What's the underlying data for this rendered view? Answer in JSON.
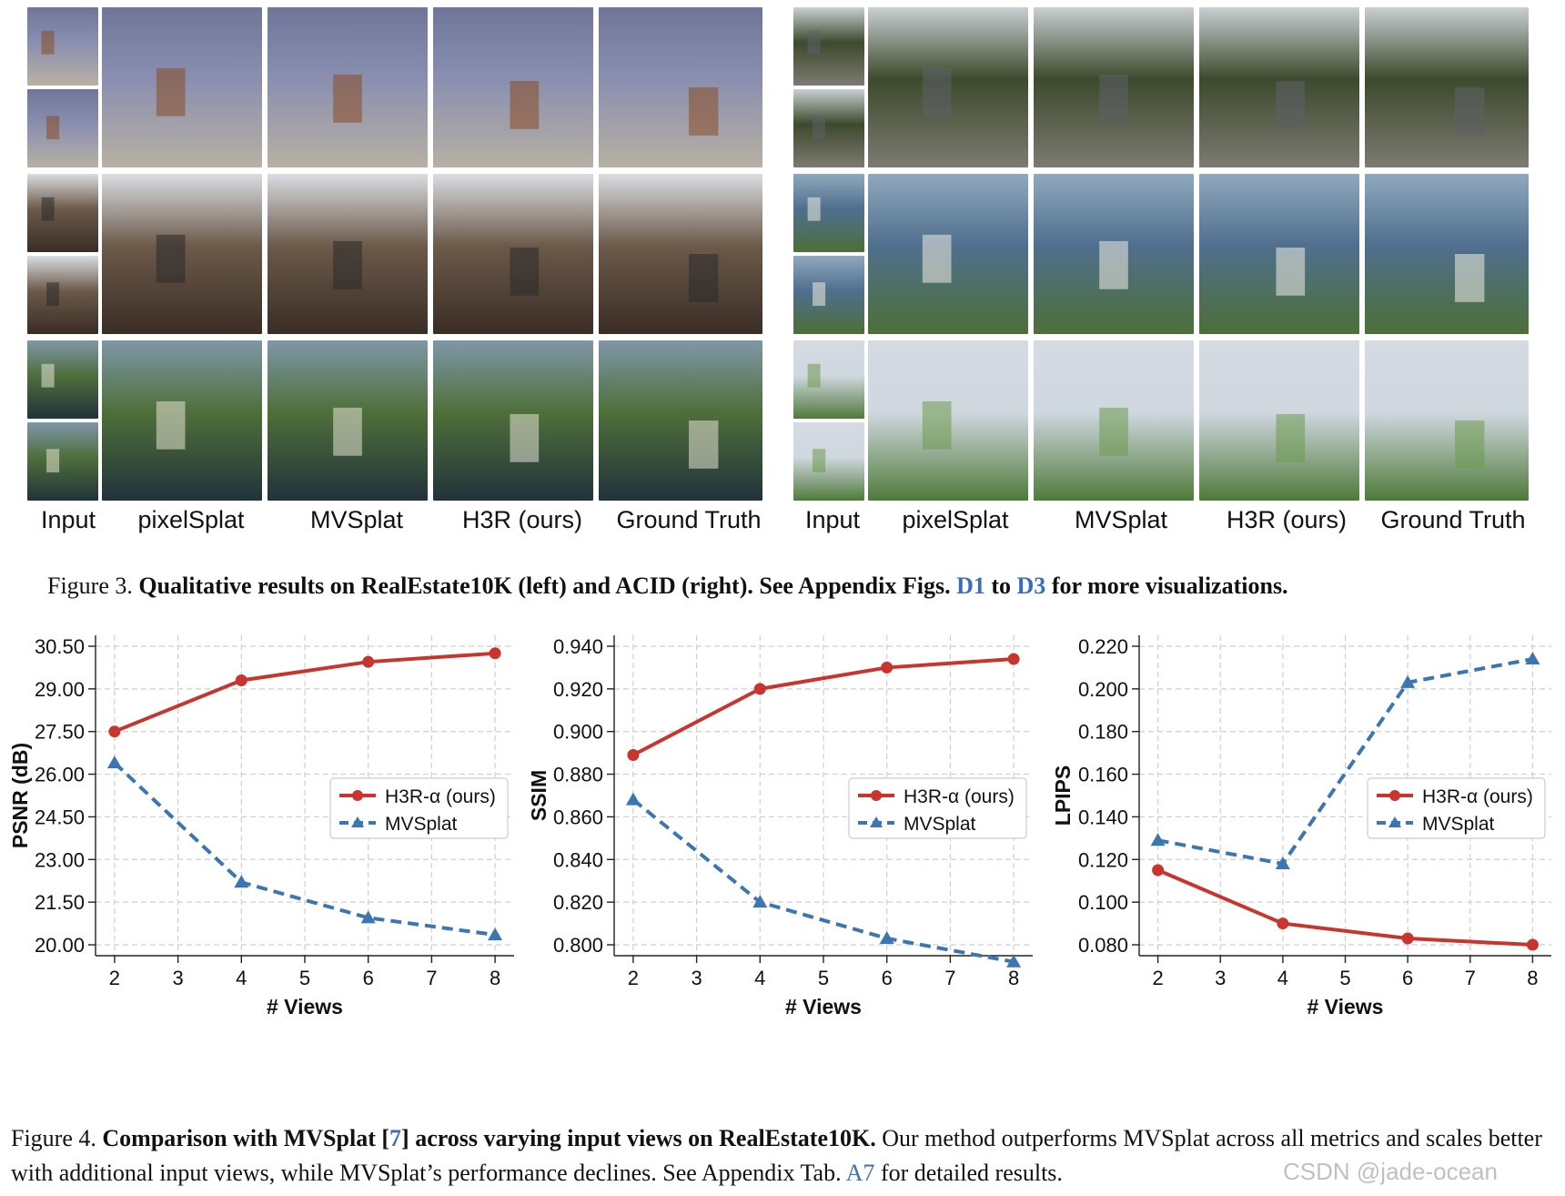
{
  "figure3": {
    "left_columns": [
      "Input",
      "pixelSplat",
      "MVSplat",
      "H3R (ours)",
      "Ground Truth"
    ],
    "right_columns": [
      "Input",
      "pixelSplat",
      "MVSplat",
      "H3R (ours)",
      "Ground Truth"
    ],
    "caption_prefix": "Figure 3.",
    "caption_bold": "Qualitative results on RealEstate10K (left) and ACID (right). See Appendix Figs.",
    "caption_ref1": "D1",
    "caption_to": "to",
    "caption_ref2": "D3",
    "caption_tail": "for more visualizations."
  },
  "figure4": {
    "caption_prefix": "Figure 4.",
    "caption_bold_a": "Comparison with MVSplat [",
    "caption_ref": "7",
    "caption_bold_b": "] across varying input views on RealEstate10K.",
    "caption_rest_a": "Our method outperforms MVSplat across all metrics and scales better with additional input views, while MVSplat’s performance declines. See Appendix Tab.",
    "caption_ref2": "A7",
    "caption_rest_b": "for detailed results."
  },
  "watermark": "CSDN @jade-ocean",
  "colors": {
    "h3r": "#c8352e",
    "mvsplat": "#3b76b3",
    "link": "#3a6fb8"
  },
  "chart_data": [
    {
      "type": "line",
      "xlabel": "# Views",
      "ylabel": "PSNR (dB)",
      "x": [
        2,
        4,
        6,
        8
      ],
      "xticks": [
        "2",
        "3",
        "4",
        "5",
        "6",
        "7",
        "8"
      ],
      "yticks": [
        "20.00",
        "21.50",
        "23.00",
        "24.50",
        "26.00",
        "27.50",
        "29.00",
        "30.50"
      ],
      "ylim": [
        20.0,
        30.5
      ],
      "grid": true,
      "legend": "center-right",
      "series": [
        {
          "name": "H3R-α (ours)",
          "values": [
            27.5,
            29.3,
            29.95,
            30.25
          ],
          "style": "solid",
          "marker": "circle"
        },
        {
          "name": "MVSplat",
          "values": [
            26.4,
            22.2,
            20.95,
            20.35
          ],
          "style": "dashed",
          "marker": "triangle"
        }
      ]
    },
    {
      "type": "line",
      "xlabel": "# Views",
      "ylabel": "SSIM",
      "x": [
        2,
        4,
        6,
        8
      ],
      "xticks": [
        "2",
        "3",
        "4",
        "5",
        "6",
        "7",
        "8"
      ],
      "yticks": [
        "0.800",
        "0.820",
        "0.840",
        "0.860",
        "0.880",
        "0.900",
        "0.920",
        "0.940"
      ],
      "ylim": [
        0.8,
        0.94
      ],
      "grid": true,
      "legend": "center-right",
      "series": [
        {
          "name": "H3R-α (ours)",
          "values": [
            0.889,
            0.92,
            0.93,
            0.934
          ],
          "style": "solid",
          "marker": "circle"
        },
        {
          "name": "MVSplat",
          "values": [
            0.868,
            0.82,
            0.803,
            0.792
          ],
          "style": "dashed",
          "marker": "triangle"
        }
      ]
    },
    {
      "type": "line",
      "xlabel": "# Views",
      "ylabel": "LPIPS",
      "x": [
        2,
        4,
        6,
        8
      ],
      "xticks": [
        "2",
        "3",
        "4",
        "5",
        "6",
        "7",
        "8"
      ],
      "yticks": [
        "0.080",
        "0.100",
        "0.120",
        "0.140",
        "0.160",
        "0.180",
        "0.200",
        "0.220"
      ],
      "ylim": [
        0.08,
        0.22
      ],
      "grid": true,
      "legend": "center-right",
      "series": [
        {
          "name": "H3R-α (ours)",
          "values": [
            0.115,
            0.09,
            0.083,
            0.08
          ],
          "style": "solid",
          "marker": "circle"
        },
        {
          "name": "MVSplat",
          "values": [
            0.129,
            0.118,
            0.203,
            0.214
          ],
          "style": "dashed",
          "marker": "triangle"
        }
      ]
    }
  ]
}
